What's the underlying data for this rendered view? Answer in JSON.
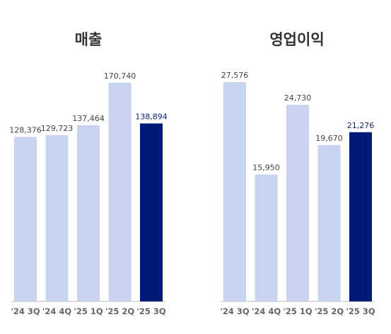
{
  "colors": {
    "bar": "#c8d3f0",
    "highlight": "#001a77",
    "highlight_label": "#0d1f7a",
    "baseline": "#bbbbbb"
  },
  "chart_data": [
    {
      "type": "bar",
      "title": "매출",
      "categories": [
        "'24 3Q",
        "'24 4Q",
        "'25 1Q",
        "'25 2Q",
        "'25 3Q"
      ],
      "values": [
        128376,
        129723,
        137464,
        170740,
        138894
      ],
      "value_labels": [
        "128,376",
        "129,723",
        "137,464",
        "170,740",
        "138,894"
      ],
      "highlight_index": 4,
      "ylim": [
        0,
        180000
      ],
      "grid": false,
      "legend": "none"
    },
    {
      "type": "bar",
      "title": "영업이익",
      "categories": [
        "'24 3Q",
        "'24 4Q",
        "'25 1Q",
        "'25 2Q",
        "'25 3Q"
      ],
      "values": [
        27576,
        15950,
        24730,
        19670,
        21276
      ],
      "value_labels": [
        "27,576",
        "15,950",
        "24,730",
        "19,670",
        "21,276"
      ],
      "highlight_index": 4,
      "ylim": [
        0,
        29000
      ],
      "grid": false,
      "legend": "none"
    }
  ]
}
